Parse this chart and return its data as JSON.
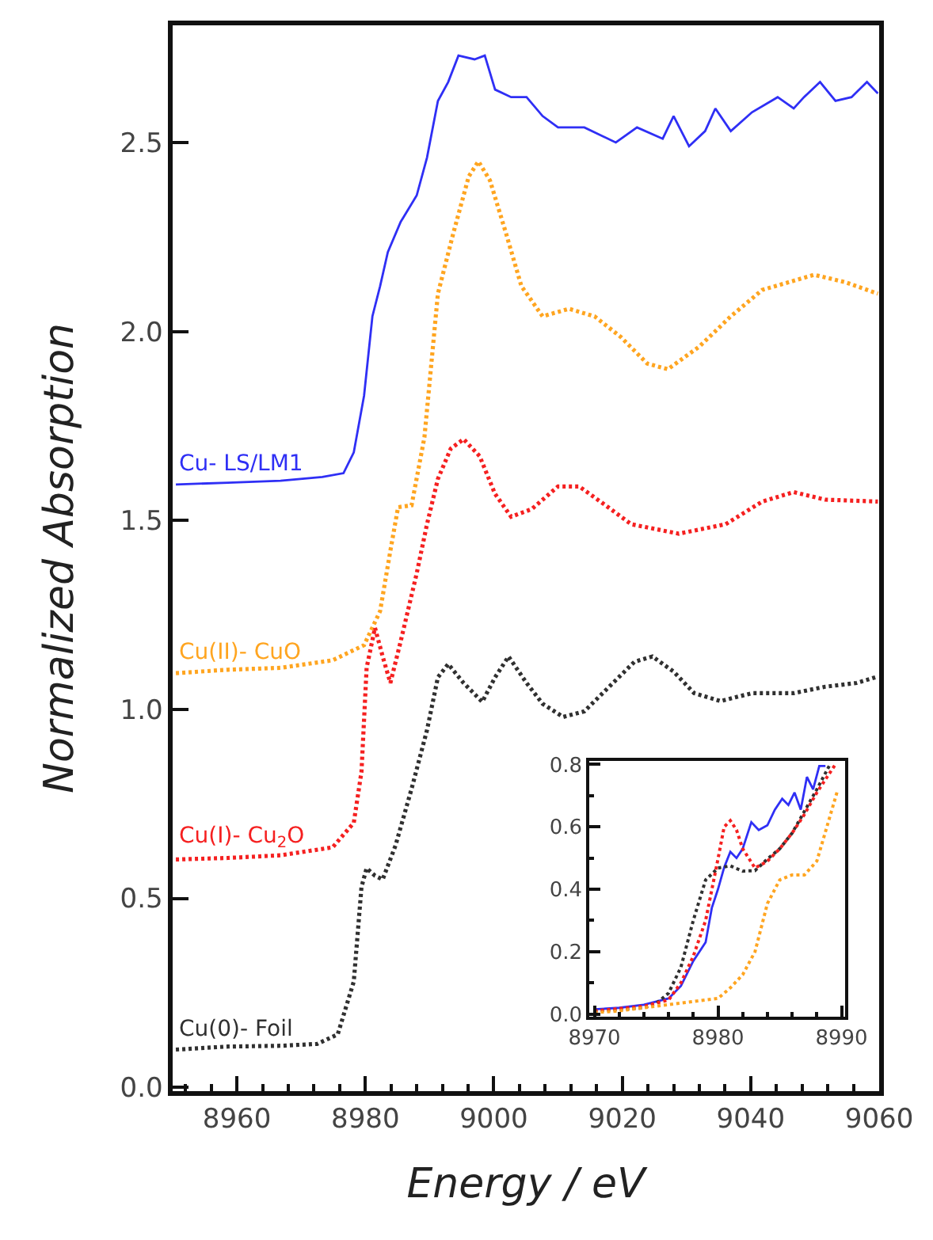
{
  "chart_data": [
    {
      "type": "line",
      "xlabel": "Energy / eV",
      "ylabel": "Normalized Absorption",
      "xlim": [
        8950,
        9060
      ],
      "ylim": [
        -0.01,
        2.81
      ],
      "xticks": [
        8960,
        8980,
        9000,
        9020,
        9040,
        9060
      ],
      "yticks": [
        {
          "value": 0,
          "label": "0.0"
        },
        0.5,
        {
          "value": 1,
          "label": "1.0"
        },
        1.5,
        {
          "value": 2,
          "label": "2.0"
        },
        2.5
      ],
      "legend": false,
      "marker": "none",
      "series": [
        {
          "name": "Cu- LS/LM1",
          "color": "#2f2ff5",
          "line_style": "solid",
          "x": [
            8950.5,
            8958.6,
            8966.8,
            8973.3,
            8976.6,
            8978.2,
            8979.8,
            8981.1,
            8982.3,
            8983.5,
            8985.5,
            8988.0,
            8989.6,
            8991.3,
            8992.9,
            8994.5,
            8997.0,
            8998.6,
            9000.2,
            9002.7,
            9005.1,
            9007.6,
            9010.0,
            9014.1,
            9019.0,
            9022.3,
            9026.3,
            9028.0,
            9030.4,
            9032.9,
            9034.5,
            9036.9,
            9040.2,
            9044.2,
            9046.7,
            9048.3,
            9050.8,
            9053.2,
            9055.7,
            9058.1,
            9059.8
          ],
          "values": [
            1.595,
            1.6,
            1.605,
            1.615,
            1.625,
            1.68,
            1.83,
            2.04,
            2.12,
            2.21,
            2.29,
            2.36,
            2.46,
            2.61,
            2.66,
            2.73,
            2.72,
            2.73,
            2.64,
            2.62,
            2.62,
            2.57,
            2.54,
            2.54,
            2.5,
            2.54,
            2.51,
            2.57,
            2.49,
            2.53,
            2.59,
            2.53,
            2.58,
            2.62,
            2.59,
            2.62,
            2.66,
            2.61,
            2.62,
            2.66,
            2.63
          ]
        },
        {
          "name": "Cu(II)- CuO",
          "color": "#ffa520",
          "line_style": "dotted",
          "x": [
            8950.5,
            8958.6,
            8966.8,
            8974.9,
            8979.8,
            8982.3,
            8983.9,
            8985.1,
            8987.2,
            8989.2,
            8991.3,
            8993.7,
            8996.1,
            8997.6,
            8999.4,
            9001.9,
            9004.3,
            9007.6,
            9011.7,
            9015.7,
            9019.8,
            9023.9,
            9027.1,
            9032.0,
            9036.9,
            9041.8,
            9049.9,
            9054.8,
            9059.8
          ],
          "values": [
            1.096,
            1.105,
            1.11,
            1.13,
            1.17,
            1.26,
            1.42,
            1.535,
            1.54,
            1.72,
            2.1,
            2.26,
            2.41,
            2.45,
            2.4,
            2.26,
            2.12,
            2.04,
            2.06,
            2.04,
            1.985,
            1.915,
            1.9,
            1.96,
            2.04,
            2.11,
            2.15,
            2.13,
            2.1
          ]
        },
        {
          "name": "Cu(I)- Cu$_{2}$O",
          "color": "#f52020",
          "line_style": "dotted",
          "x": [
            8950.5,
            8958.6,
            8966.8,
            8974.9,
            8978.2,
            8979.4,
            8980.2,
            8981.5,
            8982.7,
            8983.9,
            8985.5,
            8988.0,
            8989.6,
            8991.3,
            8993.3,
            8995.3,
            8997.8,
            9000.2,
            9002.7,
            9005.9,
            9010.0,
            9013.3,
            9017.4,
            9021.4,
            9028.8,
            9036.1,
            9041.8,
            9046.7,
            9051.6,
            9059.8
          ],
          "values": [
            0.603,
            0.607,
            0.614,
            0.635,
            0.7,
            0.835,
            1.11,
            1.216,
            1.14,
            1.07,
            1.18,
            1.36,
            1.49,
            1.61,
            1.69,
            1.715,
            1.67,
            1.57,
            1.51,
            1.53,
            1.59,
            1.59,
            1.54,
            1.49,
            1.465,
            1.49,
            1.55,
            1.575,
            1.555,
            1.55
          ]
        },
        {
          "name": "Cu(0)- Foil",
          "color": "#303030",
          "line_style": "dotted",
          "x": [
            8950.5,
            8958.6,
            8966.8,
            8972.5,
            8975.7,
            8978.2,
            8979.4,
            8980.2,
            8981.5,
            8982.7,
            8984.7,
            8987.2,
            8989.6,
            8991.3,
            8992.9,
            8995.3,
            8998.2,
            9000.2,
            9002.3,
            9005.1,
            9007.6,
            9010.8,
            9014.1,
            9018.2,
            9021.9,
            9024.7,
            9028.0,
            9031.2,
            9035.3,
            9040.2,
            9046.7,
            9051.6,
            9056.5,
            9059.8
          ],
          "values": [
            0.1,
            0.108,
            0.11,
            0.115,
            0.14,
            0.28,
            0.53,
            0.58,
            0.56,
            0.55,
            0.64,
            0.79,
            0.945,
            1.085,
            1.12,
            1.07,
            1.02,
            1.085,
            1.14,
            1.07,
            1.015,
            0.98,
            0.995,
            1.064,
            1.126,
            1.14,
            1.1,
            1.043,
            1.022,
            1.043,
            1.043,
            1.06,
            1.07,
            1.087
          ]
        }
      ]
    },
    {
      "type": "line",
      "xlim": [
        8969.6,
        8990.3
      ],
      "ylim": [
        -0.008,
        0.812
      ],
      "xticks": [
        8970,
        8980,
        8990
      ],
      "yticks": [
        {
          "value": 0,
          "label": "0.0"
        },
        0.2,
        0.4,
        0.6,
        0.8
      ],
      "legend": false,
      "marker": "none",
      "series": [
        {
          "color": "#2f2ff5",
          "line_style": "solid",
          "x": [
            8970,
            8972,
            8974,
            8976,
            8977,
            8978,
            8979,
            8979.5,
            8980,
            8980.5,
            8981,
            8981.5,
            8982,
            8982.7,
            8983.3,
            8984,
            8984.6,
            8985.2,
            8985.7,
            8986.2,
            8986.7,
            8987.2,
            8987.7,
            8988.2,
            8988.7
          ],
          "values": [
            0.015,
            0.02,
            0.03,
            0.05,
            0.09,
            0.17,
            0.23,
            0.34,
            0.4,
            0.47,
            0.52,
            0.5,
            0.53,
            0.615,
            0.59,
            0.605,
            0.655,
            0.69,
            0.67,
            0.71,
            0.655,
            0.76,
            0.72,
            0.795,
            0.795
          ]
        },
        {
          "color": "#303030",
          "line_style": "dotted",
          "x": [
            8970,
            8972,
            8974,
            8975,
            8976,
            8977,
            8978,
            8979,
            8980,
            8981,
            8982,
            8983,
            8984,
            8985,
            8986,
            8987,
            8988,
            8989
          ],
          "values": [
            0.01,
            0.015,
            0.02,
            0.034,
            0.067,
            0.15,
            0.3,
            0.43,
            0.468,
            0.475,
            0.458,
            0.46,
            0.497,
            0.53,
            0.58,
            0.65,
            0.72,
            0.795
          ]
        },
        {
          "color": "#f52020",
          "line_style": "dotted",
          "x": [
            8970,
            8974,
            8976,
            8977,
            8978,
            8979,
            8980,
            8980.5,
            8981,
            8981.5,
            8982,
            8983,
            8984,
            8985,
            8986,
            8987,
            8988,
            8989,
            8989.5
          ],
          "values": [
            0.01,
            0.025,
            0.045,
            0.1,
            0.185,
            0.3,
            0.497,
            0.6,
            0.62,
            0.59,
            0.53,
            0.468,
            0.49,
            0.53,
            0.58,
            0.64,
            0.71,
            0.77,
            0.8
          ]
        },
        {
          "color": "#ffa520",
          "line_style": "dotted",
          "x": [
            8970,
            8972,
            8974,
            8976,
            8978,
            8980,
            8981,
            8982,
            8983,
            8984,
            8985,
            8986,
            8987,
            8988,
            8989,
            8989.7
          ],
          "values": [
            0.005,
            0.01,
            0.02,
            0.03,
            0.04,
            0.05,
            0.084,
            0.126,
            0.2,
            0.354,
            0.43,
            0.446,
            0.446,
            0.49,
            0.625,
            0.72
          ]
        }
      ]
    }
  ]
}
